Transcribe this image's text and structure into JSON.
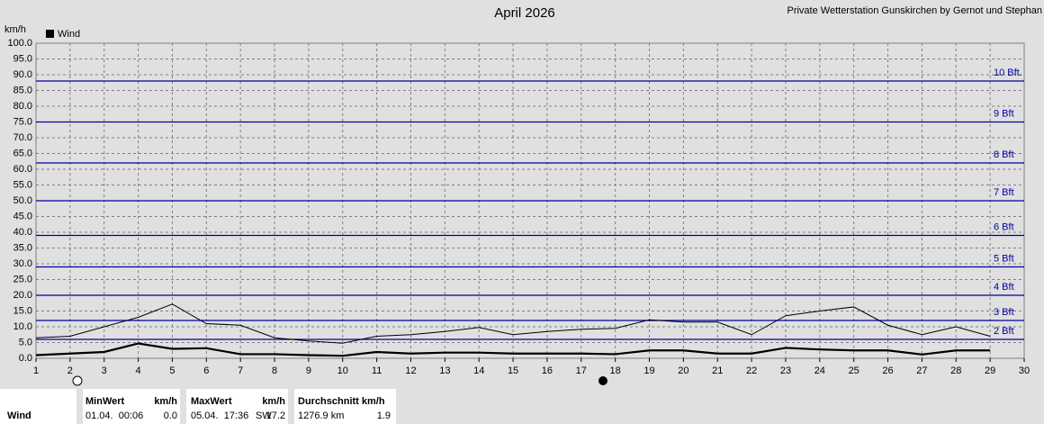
{
  "chart_data": {
    "type": "line",
    "title": "April 2026",
    "subtitle": "Private Wetterstation Gunskirchen by Gernot und Stephan",
    "y_label": "km/h",
    "x": [
      1,
      2,
      3,
      4,
      5,
      6,
      7,
      8,
      9,
      10,
      11,
      12,
      13,
      14,
      15,
      16,
      17,
      18,
      19,
      20,
      21,
      22,
      23,
      24,
      25,
      26,
      27,
      28,
      29
    ],
    "series": [
      {
        "name": "Wind",
        "color": "#000000",
        "values": [
          6.5,
          7,
          10,
          13,
          17.2,
          11,
          10.5,
          6.5,
          5.5,
          4.8,
          7,
          7.5,
          8.5,
          9.8,
          7.5,
          8.5,
          9.2,
          9.5,
          12.2,
          11.5,
          11.5,
          7.5,
          13.5,
          15,
          16.3,
          10.5,
          7.5,
          10,
          7
        ]
      },
      {
        "color": "#000000",
        "values": [
          1,
          1.5,
          2,
          4.7,
          3,
          3.2,
          1.3,
          1.3,
          1,
          0.8,
          2,
          1.5,
          1.8,
          1.8,
          1.5,
          1.5,
          1.5,
          1.3,
          2.5,
          2.5,
          1.5,
          1.5,
          3.3,
          2.8,
          2.5,
          2.5,
          1.2,
          2.5,
          2.5
        ]
      }
    ],
    "xlim": [
      1,
      30
    ],
    "xticks": [
      1,
      2,
      3,
      4,
      5,
      6,
      7,
      8,
      9,
      10,
      11,
      12,
      13,
      14,
      15,
      16,
      17,
      18,
      19,
      20,
      21,
      22,
      23,
      24,
      25,
      26,
      27,
      28,
      29,
      30
    ],
    "ylim": [
      0,
      100
    ],
    "yticks": [
      {
        "value": 0,
        "label": "0.0"
      },
      {
        "value": 5,
        "label": "5.0"
      },
      {
        "value": 10,
        "label": "10.0"
      },
      {
        "value": 15,
        "label": "15.0"
      },
      {
        "value": 20,
        "label": "20.0"
      },
      {
        "value": 25,
        "label": "25.0"
      },
      {
        "value": 30,
        "label": "30.0"
      },
      {
        "value": 35,
        "label": "35.0"
      },
      {
        "value": 40,
        "label": "40.0"
      },
      {
        "value": 45,
        "label": "45.0"
      },
      {
        "value": 50,
        "label": "50.0"
      },
      {
        "value": 55,
        "label": "55.0"
      },
      {
        "value": 60,
        "label": "60.0"
      },
      {
        "value": 65,
        "label": "65.0"
      },
      {
        "value": 70,
        "label": "70.0"
      },
      {
        "value": 75,
        "label": "75.0"
      },
      {
        "value": 80,
        "label": "80.0"
      },
      {
        "value": 85,
        "label": "85.0"
      },
      {
        "value": 90,
        "label": "90.0"
      },
      {
        "value": 95,
        "label": "95.0"
      },
      {
        "value": 100,
        "label": "100.0"
      }
    ],
    "grid": true,
    "reference_lines": [
      {
        "value": 6,
        "label": "2 Bft"
      },
      {
        "value": 12,
        "label": "3 Bft"
      },
      {
        "value": 20,
        "label": "4 Bft"
      },
      {
        "value": 29,
        "label": "5 Bft"
      },
      {
        "value": 39,
        "label": "6 Bft"
      },
      {
        "value": 50,
        "label": "7 Bft"
      },
      {
        "value": 62,
        "label": "8 Bft"
      },
      {
        "value": 75,
        "label": "9 Bft"
      },
      {
        "value": 88,
        "label": "10 Bft."
      }
    ],
    "reference_color": "#0000a0"
  },
  "summary": {
    "label": "Wind",
    "min_header": "MinWert",
    "min_unit": "km/h",
    "min_time": "01.04.  00:06",
    "min_value": "0.0",
    "max_header": "MaxWert",
    "max_unit": "km/h",
    "max_time": "05.04.  17:36",
    "max_dir": "SW",
    "max_value": "17.2",
    "avg_header": "Durchschnitt km/h",
    "avg_distance": "1276.9 km",
    "avg_value": "1.9"
  }
}
